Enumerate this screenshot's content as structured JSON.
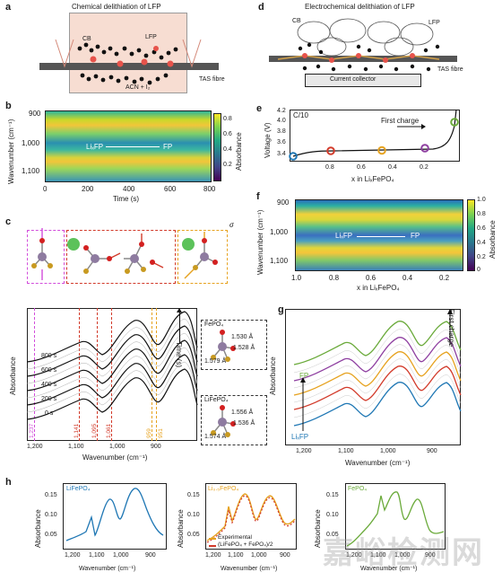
{
  "panel_labels": {
    "a": "a",
    "b": "b",
    "c": "c",
    "d": "d",
    "e": "e",
    "f": "f",
    "g": "g",
    "h": "h"
  },
  "a": {
    "title": "Chemical delithiation of LFP",
    "cb": "CB",
    "lfp": "LFP",
    "reagent": "ACN + I₂",
    "fibre": "TAS fibre"
  },
  "d": {
    "title": "Electrochemical delithiation of LFP",
    "cb": "CB",
    "lfp": "LFP",
    "collector": "Current collector",
    "fibre": "TAS fibre"
  },
  "b": {
    "ylabel": "Wavenumber (cm⁻¹)",
    "xlabel": "Time (s)",
    "yticks": [
      "900",
      "1,000",
      "1,100"
    ],
    "xticks": [
      "0",
      "200",
      "400",
      "600",
      "800"
    ],
    "arrow_from": "LiₓFP",
    "arrow_to": "FP",
    "cbar_label": "Absorbance",
    "cbar_ticks": [
      "0.8",
      "0.6",
      "0.4",
      "0.2"
    ]
  },
  "e": {
    "rate": "C/10",
    "ylabel": "Voltage (V)",
    "xlabel": "x in LiₓFePO₄",
    "yticks": [
      "4.2",
      "4.0",
      "3.8",
      "3.6",
      "3.4"
    ],
    "xticks": [
      "0.8",
      "0.6",
      "0.4",
      "0.2"
    ],
    "annotation": "First charge"
  },
  "f": {
    "ylabel": "Wavenumber (cm⁻¹)",
    "xlabel": "x in LiₓFePO₄",
    "yticks": [
      "900",
      "1,000",
      "1,100"
    ],
    "xticks": [
      "1.0",
      "0.8",
      "0.6",
      "0.4",
      "0.2"
    ],
    "arrow_from": "LiₓFP",
    "arrow_to": "FP",
    "cbar_label": "Absorbance",
    "cbar_ticks": [
      "1.0",
      "0.8",
      "0.6",
      "0.4",
      "0.2",
      "0"
    ]
  },
  "c": {
    "sigma": "σ",
    "ylabel": "Absorbance",
    "xlabel": "Wavenumber (cm⁻¹)",
    "xticks": [
      "1,200",
      "1,100",
      "1,000",
      "900"
    ],
    "time_label": "Time (s)",
    "traces": [
      "800 s",
      "600 s",
      "400 s",
      "200 s",
      "0 s"
    ],
    "peaks": [
      "1,237",
      "1,141",
      "1,095",
      "1,061",
      "959",
      "951"
    ],
    "fepo4": {
      "name": "FePO₄",
      "b1": "1.530 Å",
      "b2": "1.528 Å",
      "b3": "1.579 Å"
    },
    "lifepo4": {
      "name": "LiFePO₄",
      "b1": "1.556 Å",
      "b2": "1.536 Å",
      "b3": "1.574 Å"
    }
  },
  "g": {
    "ylabel": "Absorbance",
    "xlabel": "Wavenumber (cm⁻¹)",
    "xticks": [
      "1,200",
      "1,100",
      "1,000",
      "900"
    ],
    "annotation": "First charge",
    "fp": "FP",
    "lixfp": "LiₓFP"
  },
  "h": {
    "p1": {
      "name": "LiFePO₄",
      "ylabel": "Absorbance",
      "xlabel": "Wavenumber (cm⁻¹)",
      "yticks": [
        "0.15",
        "0.10",
        "0.05"
      ],
      "xticks": [
        "1,200",
        "1,100",
        "1,000",
        "900"
      ]
    },
    "p2": {
      "name": "Li₀.₅FePO₄",
      "ylabel": "Absorbance",
      "xlabel": "Wavenumber (cm⁻¹)",
      "yticks": [
        "0.15",
        "0.10",
        "0.05"
      ],
      "xticks": [
        "1,200",
        "1,100",
        "1,000",
        "900"
      ],
      "legend1": "Experimental",
      "legend2": "(LiFePO₄ + FePO₄)/2"
    },
    "p3": {
      "name": "FePO₄",
      "ylabel": "Absorbance",
      "xlabel": "Wavenumber (cm⁻¹)",
      "yticks": [
        "0.15",
        "0.10",
        "0.05"
      ],
      "xticks": [
        "1,200",
        "1,100",
        "1,000",
        "900"
      ]
    }
  },
  "watermark": "嘉峪检测网",
  "colors": {
    "lixfp": "#1f77b4",
    "fp": "#6aaa3a",
    "orange": "#e6a21f",
    "red": "#d23a2a",
    "purple": "#8e3fa0",
    "magenta": "#d24ddb"
  },
  "chart_data": [
    {
      "type": "heatmap",
      "panel": "b",
      "xlabel": "Time (s)",
      "ylabel": "Wavenumber (cm⁻¹)",
      "xlim": [
        0,
        800
      ],
      "ylim": [
        1150,
        880
      ]
    },
    {
      "type": "line",
      "panel": "e",
      "xlabel": "x in LiₓFePO₄",
      "ylabel": "Voltage (V)",
      "ylim": [
        3.35,
        4.25
      ],
      "markers": [
        {
          "x": 1.0,
          "y": 3.4,
          "color": "#1f77b4"
        },
        {
          "x": 0.77,
          "y": 3.45,
          "color": "#d23a2a"
        },
        {
          "x": 0.47,
          "y": 3.46,
          "color": "#e6a21f"
        },
        {
          "x": 0.2,
          "y": 3.5,
          "color": "#8e3fa0"
        },
        {
          "x": 0.02,
          "y": 3.8,
          "color": "#6aaa3a"
        }
      ]
    },
    {
      "type": "heatmap",
      "panel": "f",
      "xlabel": "x in LiₓFePO₄",
      "ylabel": "Wavenumber (cm⁻¹)"
    },
    {
      "type": "line",
      "panel": "c",
      "series": [
        {
          "name": "800 s"
        },
        {
          "name": "600 s"
        },
        {
          "name": "400 s"
        },
        {
          "name": "200 s"
        },
        {
          "name": "0 s"
        }
      ]
    },
    {
      "type": "line",
      "panel": "g"
    },
    {
      "type": "line",
      "panel": "h1",
      "ylim": [
        0.03,
        0.16
      ]
    },
    {
      "type": "line",
      "panel": "h2",
      "series": [
        {
          "name": "Experimental"
        },
        {
          "name": "(LiFePO₄ + FePO₄)/2"
        }
      ]
    },
    {
      "type": "line",
      "panel": "h3"
    }
  ]
}
